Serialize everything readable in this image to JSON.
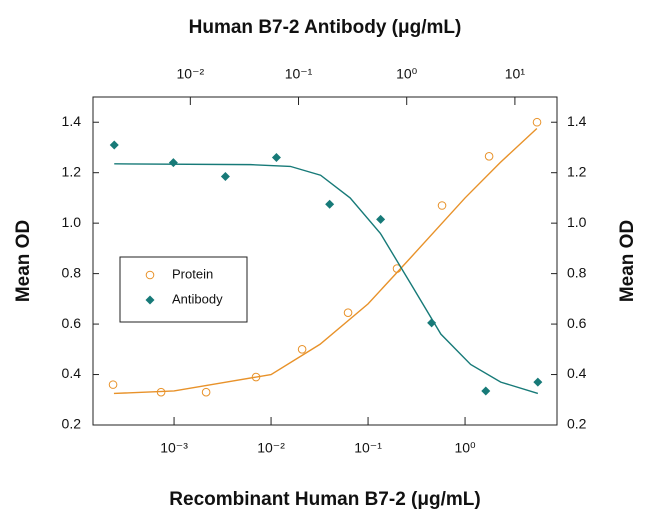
{
  "chart_data": {
    "type": "scatter",
    "x2_label": "Human B7-2 Antibody (μg/mL)",
    "x_label": "Recombinant Human B7-2 (μg/mL)",
    "y_label": "Mean OD",
    "y2_label": "Mean OD",
    "xscale": "log",
    "x2scale": "log",
    "xlim": [
      0.000146,
      8.87
    ],
    "x2lim": [
      0.00126,
      24.5
    ],
    "xticks": [
      {
        "value": 0.001,
        "label": "10⁻³"
      },
      {
        "value": 0.01,
        "label": "10⁻²"
      },
      {
        "value": 0.1,
        "label": "10⁻¹"
      },
      {
        "value": 1,
        "label": "10⁰"
      }
    ],
    "x2ticks": [
      {
        "value": 0.01,
        "label": "10⁻²"
      },
      {
        "value": 0.1,
        "label": "10⁻¹"
      },
      {
        "value": 1,
        "label": "10⁰"
      },
      {
        "value": 10,
        "label": "10¹"
      }
    ],
    "ylim": [
      0.2,
      1.5
    ],
    "y2lim": [
      0.2,
      1.5
    ],
    "yticks": [
      0.2,
      0.4,
      0.6,
      0.8,
      {
        "value": 1,
        "label": "1.0"
      },
      1.2,
      1.4
    ],
    "y2ticks": [
      0.2,
      0.4,
      0.6,
      0.8,
      {
        "value": 1,
        "label": "1.0"
      },
      1.2,
      1.4
    ],
    "grid": false,
    "legend_position": "left",
    "series": [
      {
        "name": "Protein",
        "color": "#e8922a",
        "marker": "circle",
        "xaxis": "x",
        "x": [
          0.000235,
          0.000735,
          0.00214,
          0.007,
          0.0209,
          0.0622,
          0.199,
          0.579,
          1.77,
          5.52
        ],
        "values": [
          0.36,
          0.33,
          0.33,
          0.39,
          0.5,
          0.645,
          0.82,
          1.07,
          1.265,
          1.4
        ],
        "fit_x": [
          0.00024,
          0.001,
          0.01,
          0.032,
          0.1,
          0.27,
          1,
          2.3,
          5.5
        ],
        "fit_values": [
          0.325,
          0.335,
          0.4,
          0.52,
          0.68,
          0.86,
          1.1,
          1.24,
          1.375
        ]
      },
      {
        "name": "Antibody",
        "color": "#177a78",
        "marker": "diamond",
        "xaxis": "x2",
        "x": [
          0.00198,
          0.00697,
          0.0211,
          0.0625,
          0.194,
          0.574,
          1.7,
          5.38,
          16.3
        ],
        "values": [
          1.31,
          1.24,
          1.185,
          1.26,
          1.075,
          1.015,
          0.605,
          0.335,
          0.37
        ],
        "fit_x": [
          0.00198,
          0.036,
          0.084,
          0.16,
          0.3,
          0.57,
          1.09,
          2.07,
          3.9,
          7.4,
          16.3
        ],
        "fit_values": [
          1.235,
          1.232,
          1.225,
          1.19,
          1.1,
          0.96,
          0.76,
          0.56,
          0.44,
          0.37,
          0.325
        ]
      }
    ]
  }
}
